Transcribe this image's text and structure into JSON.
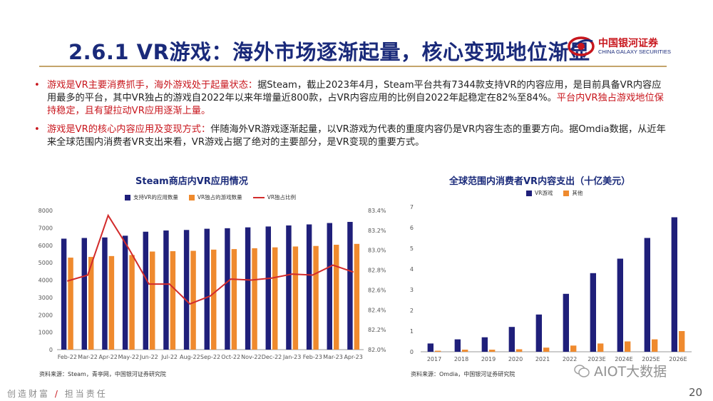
{
  "header": {
    "title": "2.6.1 VR游戏：海外市场逐渐起量，核心变现地位渐显",
    "logo_cn": "中国银河证券",
    "logo_en": "CHINA GALAXY SECURITIES"
  },
  "bullets": [
    {
      "lead": "游戏是VR主要消费抓手，海外游戏处于起量状态：",
      "body": "据Steam，截止2023年4月，Steam平台共有7344款支持VR的内容应用，是目前具备VR内容应用最多的平台，其中VR独占的游戏自2022年以来年增量近800款，占VR内容应用的比例自2022年起稳定在82%至84%。",
      "tail": "平台内VR独占游戏地位保持稳定，且有望拉动VR应用逐渐上量。"
    },
    {
      "lead": "游戏是VR的核心内容应用及变现方式：",
      "body": "伴随海外VR游戏逐渐起量，以VR游戏为代表的重度内容仍是VR内容生态的重要方向。据Omdia数据，从近年来全球范围内消费者VR支出来看，VR游戏占据了绝对的主要部分，是VR变现的重要方式。",
      "tail": ""
    }
  ],
  "chart_data": [
    {
      "type": "bar",
      "title": "Steam商店内VR应用情况",
      "categories": [
        "Feb-22",
        "Mar-22",
        "Apr-22",
        "May-22",
        "Jun-22",
        "Jul-22",
        "Aug-22",
        "Sep-22",
        "Oct-22",
        "Nov-22",
        "Dec-22",
        "Jan-23",
        "Feb-23",
        "Mar-23",
        "Apr-23"
      ],
      "series": [
        {
          "name": "支持VR的应用数量",
          "axis": "left",
          "type": "bar",
          "color": "#1f1f7a",
          "values": [
            6380,
            6420,
            6450,
            6550,
            6780,
            6850,
            6880,
            6950,
            6980,
            7030,
            7080,
            7140,
            7200,
            7280,
            7344
          ]
        },
        {
          "name": "VR独占的游戏数量",
          "axis": "left",
          "type": "bar",
          "color": "#ef8a2e",
          "values": [
            5290,
            5330,
            5380,
            5440,
            5640,
            5660,
            5680,
            5750,
            5780,
            5830,
            5880,
            5930,
            5960,
            6030,
            6080
          ]
        },
        {
          "name": "VR独占比例",
          "axis": "right",
          "type": "line",
          "color": "#d22b2b",
          "values": [
            82.69,
            82.75,
            83.35,
            83.02,
            82.66,
            82.66,
            82.46,
            82.54,
            82.71,
            82.7,
            82.72,
            82.76,
            82.75,
            82.85,
            82.78
          ]
        }
      ],
      "y_left": {
        "ylim": [
          0,
          8000
        ],
        "ticks": [
          0,
          1000,
          2000,
          3000,
          4000,
          5000,
          6000,
          7000,
          8000
        ]
      },
      "y_right": {
        "ylim": [
          82.0,
          83.4
        ],
        "ticks": [
          "82.0%",
          "82.2%",
          "82.4%",
          "82.6%",
          "82.8%",
          "83.0%",
          "83.2%",
          "83.4%"
        ]
      },
      "source": "资料来源：Steam，青亭网，中国银河证券研究院"
    },
    {
      "type": "bar",
      "title": "全球范围内消费者VR内容支出（十亿美元）",
      "categories": [
        "2017",
        "2018",
        "2019",
        "2020",
        "2021",
        "2022",
        "2023E",
        "2024E",
        "2025E",
        "2026E"
      ],
      "series": [
        {
          "name": "VR游戏",
          "color": "#1f1f7a",
          "values": [
            0.4,
            0.6,
            0.7,
            1.2,
            1.8,
            2.8,
            3.8,
            4.5,
            5.5,
            6.5
          ]
        },
        {
          "name": "其他",
          "color": "#ef8a2e",
          "values": [
            0.05,
            0.1,
            0.1,
            0.12,
            0.2,
            0.3,
            0.4,
            0.5,
            0.6,
            1.0
          ]
        }
      ],
      "ylim": [
        0,
        7
      ],
      "yticks": [
        0,
        1,
        2,
        3,
        4,
        5,
        6,
        7
      ],
      "source": "资料来源：Omdia，中国银河证券研究院"
    }
  ],
  "footer": {
    "slogan_a": "创造财富",
    "slogan_sep": "/",
    "slogan_b": "担当责任",
    "page": "20",
    "watermark": "AIOT大数据"
  },
  "colors": {
    "navy": "#1a2a7a",
    "red": "#c8161d",
    "orange": "#ef8a2e",
    "bar_navy": "#1f1f7a",
    "gold": "#c4a46b"
  }
}
